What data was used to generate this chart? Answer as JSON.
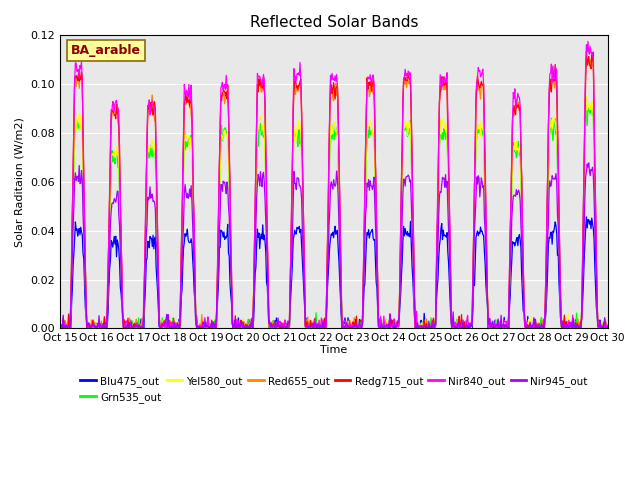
{
  "title": "Reflected Solar Bands",
  "xlabel": "Time",
  "ylabel": "Solar Raditaion (W/m2)",
  "annotation": "BA_arable",
  "ylim": [
    0,
    0.12
  ],
  "yticks": [
    0.0,
    0.02,
    0.04,
    0.06,
    0.08,
    0.1,
    0.12
  ],
  "xtick_labels": [
    "Oct 15",
    "Oct 16",
    "Oct 17",
    "Oct 18",
    "Oct 19",
    "Oct 20",
    "Oct 21",
    "Oct 22",
    "Oct 23",
    "Oct 24",
    "Oct 25",
    "Oct 26",
    "Oct 27",
    "Oct 28",
    "Oct 29",
    "Oct 30"
  ],
  "series": [
    {
      "label": "Blu475_out",
      "color": "#0000ff",
      "scale": 0.38
    },
    {
      "label": "Grn535_out",
      "color": "#00ff00",
      "scale": 0.78
    },
    {
      "label": "Yel580_out",
      "color": "#ffff00",
      "scale": 0.8
    },
    {
      "label": "Red655_out",
      "color": "#ff8800",
      "scale": 0.96
    },
    {
      "label": "Redg715_out",
      "color": "#ff0000",
      "scale": 0.97
    },
    {
      "label": "Nir840_out",
      "color": "#ff00ff",
      "scale": 1.0
    },
    {
      "label": "Nir945_out",
      "color": "#aa00ff",
      "scale": 0.58
    }
  ],
  "background_color": "#e8e8e8",
  "daily_peaks": [
    0.107,
    0.091,
    0.093,
    0.097,
    0.1,
    0.103,
    0.103,
    0.102,
    0.103,
    0.105,
    0.103,
    0.103,
    0.094,
    0.105,
    0.114
  ]
}
